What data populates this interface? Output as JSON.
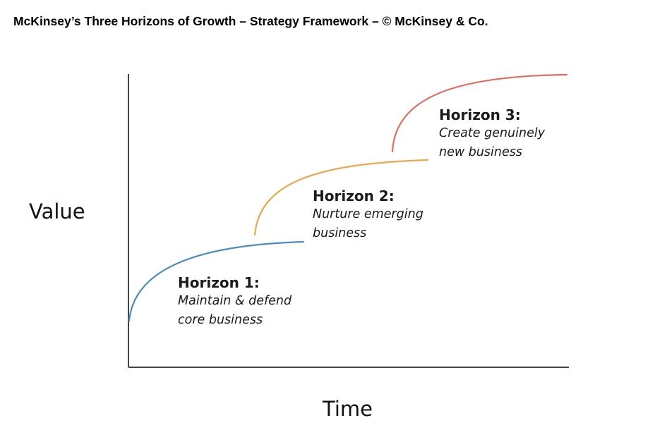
{
  "header": {
    "title": "McKinsey’s Three Horizons of Growth – Strategy Framework – © McKinsey & Co."
  },
  "axes": {
    "y_label": "Value",
    "x_label": "Time"
  },
  "horizons": [
    {
      "title": "Horizon 1:",
      "description": "Maintain & defend core business",
      "color": "#4a8cc4"
    },
    {
      "title": "Horizon 2:",
      "description": "Nurture emerging business",
      "color": "#e8a94e"
    },
    {
      "title": "Horizon 3:",
      "description": "Create genuinely new business",
      "color": "#e06f62"
    }
  ],
  "colors": {
    "axis": "#444444",
    "text": "#1a1a1a"
  }
}
